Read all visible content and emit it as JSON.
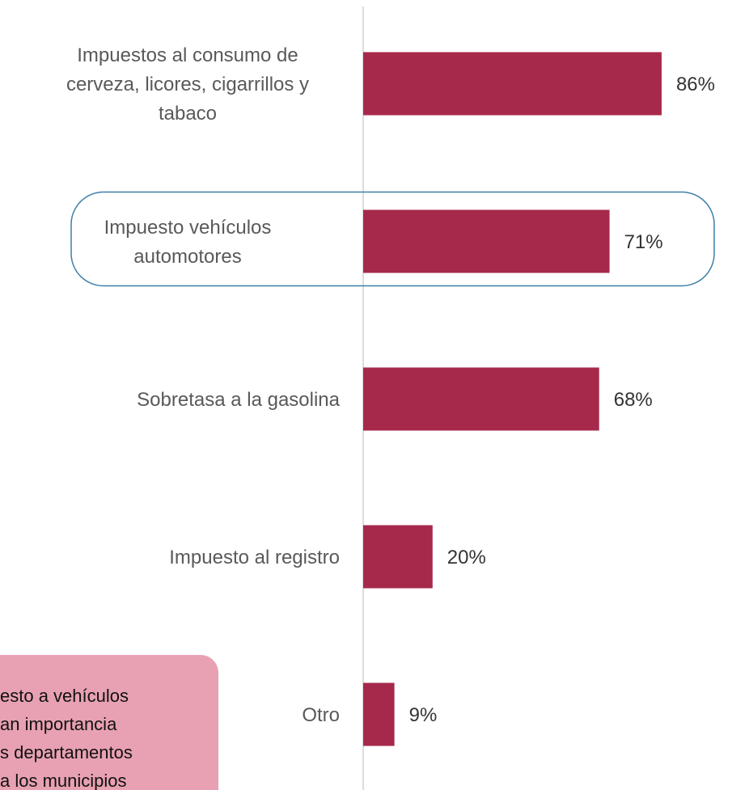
{
  "chart_data": {
    "type": "bar",
    "orientation": "horizontal",
    "categories": [
      [
        "Impuestos al consumo de",
        "cerveza, licores, cigarrillos y",
        "tabaco"
      ],
      [
        "Impuesto vehículos",
        "automotores"
      ],
      [
        "Sobretasa a la gasolina"
      ],
      [
        "Impuesto al registro"
      ],
      [
        "Otro"
      ]
    ],
    "values": [
      86,
      71,
      68,
      20,
      9
    ],
    "value_labels": [
      "86%",
      "71%",
      "68%",
      "20%",
      "9%"
    ],
    "color": "#a6294b",
    "xlim": [
      0,
      100
    ],
    "highlight": 1,
    "annotation": [
      "esto a vehículos",
      "an importancia",
      "s departamentos",
      "a los municipios"
    ]
  }
}
